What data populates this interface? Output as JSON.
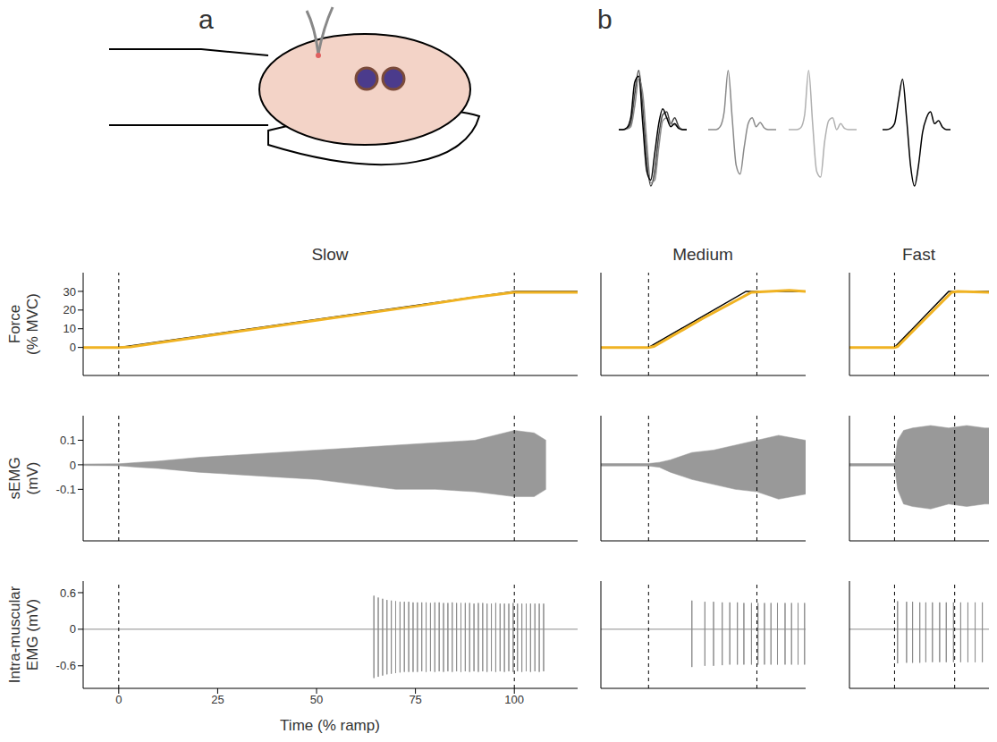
{
  "panel_a": {
    "label": "a"
  },
  "panel_b": {
    "label": "b",
    "ylim": [
      -1.1,
      1.1
    ],
    "units": [
      {
        "traces": [
          {
            "color": "#444444",
            "values": [
              0,
              0,
              0.02,
              0.1,
              0.6,
              1.0,
              0.4,
              -0.5,
              -0.95,
              -0.7,
              -0.1,
              0.25,
              0.3,
              0.1,
              0.2,
              0.05,
              0,
              0
            ]
          },
          {
            "color": "#888888",
            "values": [
              0,
              0,
              0.01,
              0.05,
              0.4,
              0.85,
              0.6,
              -0.2,
              -0.9,
              -0.85,
              -0.3,
              0.15,
              0.2,
              0.1,
              0.08,
              0.03,
              0,
              0
            ]
          },
          {
            "color": "#000000",
            "values": [
              0,
              0,
              0.03,
              0.2,
              0.8,
              0.9,
              0.1,
              -0.7,
              -0.85,
              -0.4,
              0.1,
              0.35,
              0.2,
              0.05,
              0.1,
              0.02,
              0,
              0
            ]
          }
        ]
      },
      {
        "traces": [
          {
            "color": "#8a8a8a",
            "values": [
              0,
              0,
              0,
              0.05,
              0.3,
              1.0,
              0.2,
              -0.6,
              -0.75,
              -0.3,
              0.1,
              0.2,
              0.05,
              0.12,
              0.03,
              0,
              0,
              0
            ]
          }
        ]
      },
      {
        "traces": [
          {
            "color": "#b0b0b0",
            "values": [
              0,
              0,
              0,
              0.03,
              0.25,
              1.0,
              0.1,
              -0.7,
              -0.8,
              -0.2,
              0.15,
              0.2,
              0.0,
              0.1,
              0.02,
              0,
              0,
              0
            ]
          }
        ]
      },
      {
        "traces": [
          {
            "color": "#000000",
            "values": [
              0,
              0,
              0.02,
              0.1,
              0.5,
              0.85,
              0.2,
              -0.6,
              -0.95,
              -0.6,
              -0.05,
              0.2,
              0.3,
              0.1,
              0.15,
              0.04,
              0,
              0
            ]
          }
        ]
      }
    ]
  },
  "chart_data": [
    {
      "type": "line",
      "title": "Slow",
      "ylabel": [
        "Force",
        "(% MVC)"
      ],
      "xlim": [
        -9,
        116
      ],
      "ylim": [
        -15,
        40
      ],
      "yticks": [
        0,
        10,
        20,
        30
      ],
      "tick_labels": "y",
      "ramp_markers": [
        0,
        100
      ],
      "series": [
        {
          "color": "#000000",
          "x": [
            -9,
            0,
            100,
            116
          ],
          "values": [
            0,
            0,
            30,
            30
          ]
        },
        {
          "color": "#f0b323",
          "x": [
            -9,
            0,
            3,
            10,
            25,
            50,
            75,
            90,
            100,
            108,
            116
          ],
          "values": [
            0,
            0,
            0.3,
            2.5,
            7,
            14.5,
            22,
            26.8,
            29.5,
            29.5,
            29.5
          ]
        }
      ]
    },
    {
      "type": "area",
      "ylabel": [
        "sEMG",
        "(mV)"
      ],
      "xlim": [
        -9,
        116
      ],
      "ylim": [
        -0.31,
        0.2
      ],
      "yticks": [
        -0.1,
        0,
        0.1
      ],
      "tick_labels": "y",
      "ramp_markers": [
        0,
        100
      ],
      "color": "#999999",
      "x": [
        -9,
        0,
        5,
        10,
        20,
        30,
        40,
        50,
        60,
        70,
        80,
        90,
        95,
        100,
        105,
        108
      ],
      "upper": [
        0.003,
        0.004,
        0.01,
        0.015,
        0.03,
        0.04,
        0.05,
        0.06,
        0.07,
        0.08,
        0.09,
        0.1,
        0.12,
        0.14,
        0.13,
        0.1
      ],
      "lower": [
        -0.003,
        -0.004,
        -0.01,
        -0.015,
        -0.03,
        -0.04,
        -0.05,
        -0.06,
        -0.08,
        -0.1,
        -0.1,
        -0.11,
        -0.12,
        -0.13,
        -0.13,
        -0.1
      ]
    },
    {
      "type": "spikes",
      "ylabel": [
        "Intra-muscular",
        "EMG (mV)"
      ],
      "xlabel": "Time (% ramp)",
      "xlim": [
        -9,
        116
      ],
      "ylim": [
        -0.97,
        0.79
      ],
      "xticks": [
        0,
        25,
        50,
        75,
        100
      ],
      "yticks": [
        -0.6,
        0,
        0.6
      ],
      "tick_labels": true,
      "ramp_markers": [
        0,
        100
      ],
      "color": "#8c8c8c",
      "baseline": 0,
      "spike_times": [
        64.5,
        65.6,
        66.7,
        67.8,
        68.9,
        70,
        71.1,
        72.2,
        73.3,
        74.4,
        75.5,
        76.6,
        77.7,
        78.8,
        79.9,
        81,
        82.1,
        83.2,
        84.3,
        85.4,
        86.5,
        87.6,
        88.7,
        89.8,
        90.9,
        92,
        93.1,
        94.2,
        95.3,
        96.4,
        97.5,
        98.6,
        99.7,
        100.8,
        101.9,
        103,
        104.1,
        105.2,
        106.3,
        107.4
      ],
      "spike_max": [
        0.55,
        0.52,
        0.5,
        0.48,
        0.47,
        0.46,
        0.45,
        0.45,
        0.45,
        0.44,
        0.44,
        0.44,
        0.44,
        0.43,
        0.44,
        0.44,
        0.43,
        0.43,
        0.44,
        0.43,
        0.43,
        0.43,
        0.43,
        0.42,
        0.43,
        0.43,
        0.42,
        0.42,
        0.43,
        0.42,
        0.42,
        0.42,
        0.43,
        0.42,
        0.42,
        0.42,
        0.42,
        0.42,
        0.42,
        0.42
      ],
      "spike_min": [
        -0.8,
        -0.78,
        -0.76,
        -0.74,
        -0.73,
        -0.72,
        -0.71,
        -0.7,
        -0.7,
        -0.7,
        -0.7,
        -0.69,
        -0.7,
        -0.69,
        -0.7,
        -0.69,
        -0.7,
        -0.69,
        -0.7,
        -0.69,
        -0.7,
        -0.69,
        -0.7,
        -0.69,
        -0.7,
        -0.69,
        -0.7,
        -0.69,
        -0.7,
        -0.69,
        -0.7,
        -0.69,
        -0.7,
        -0.69,
        -0.7,
        -0.69,
        -0.7,
        -0.69,
        -0.7,
        -0.69
      ]
    },
    {
      "type": "line",
      "title": "Medium",
      "xlim": [
        -44,
        145
      ],
      "ylim": [
        -15,
        40
      ],
      "tick_labels": false,
      "ramp_markers": [
        0,
        100
      ],
      "series": [
        {
          "color": "#000000",
          "x": [
            -44,
            0,
            90,
            145
          ],
          "values": [
            0,
            0,
            30,
            30
          ]
        },
        {
          "color": "#f0b323",
          "x": [
            -44,
            0,
            5,
            50,
            95,
            130,
            145
          ],
          "values": [
            0,
            0,
            0.5,
            15.5,
            29.5,
            30.5,
            30
          ]
        }
      ]
    },
    {
      "type": "area",
      "xlim": [
        -44,
        145
      ],
      "ylim": [
        -0.31,
        0.2
      ],
      "tick_labels": false,
      "ramp_markers": [
        0,
        100
      ],
      "color": "#999999",
      "x": [
        -44,
        0,
        10,
        20,
        40,
        60,
        80,
        100,
        120,
        145
      ],
      "upper": [
        0.005,
        0.005,
        0.01,
        0.02,
        0.05,
        0.06,
        0.08,
        0.1,
        0.12,
        0.1
      ],
      "lower": [
        -0.005,
        -0.005,
        -0.01,
        -0.03,
        -0.06,
        -0.08,
        -0.1,
        -0.11,
        -0.14,
        -0.12
      ]
    },
    {
      "type": "spikes",
      "xlim": [
        -44,
        145
      ],
      "ylim": [
        -0.97,
        0.79
      ],
      "tick_labels": false,
      "ramp_markers": [
        0,
        100
      ],
      "color": "#8c8c8c",
      "baseline": 0,
      "spike_times": [
        40,
        52,
        60,
        68,
        75,
        82,
        88,
        95,
        101,
        107,
        113,
        119,
        126,
        132,
        138,
        144
      ],
      "spike_max": [
        0.47,
        0.45,
        0.45,
        0.44,
        0.44,
        0.44,
        0.43,
        0.43,
        0.43,
        0.43,
        0.43,
        0.43,
        0.43,
        0.43,
        0.43,
        0.43
      ],
      "spike_min": [
        -0.62,
        -0.6,
        -0.6,
        -0.59,
        -0.58,
        -0.58,
        -0.58,
        -0.58,
        -0.58,
        -0.58,
        -0.58,
        -0.58,
        -0.58,
        -0.58,
        -0.58,
        -0.58
      ]
    },
    {
      "type": "line",
      "title": "Fast",
      "xlim": [
        -75,
        157
      ],
      "ylim": [
        -15,
        40
      ],
      "tick_labels": false,
      "ramp_markers": [
        0,
        100
      ],
      "series": [
        {
          "color": "#000000",
          "x": [
            -75,
            0,
            90,
            157
          ],
          "values": [
            0,
            0,
            30,
            30
          ]
        },
        {
          "color": "#f0b323",
          "x": [
            -75,
            0,
            5,
            50,
            95,
            105,
            157
          ],
          "values": [
            0,
            0,
            0.5,
            15,
            29.5,
            30,
            29.5
          ]
        }
      ]
    },
    {
      "type": "area",
      "xlim": [
        -75,
        157
      ],
      "ylim": [
        -0.31,
        0.2
      ],
      "tick_labels": false,
      "ramp_markers": [
        0,
        100
      ],
      "color": "#999999",
      "x": [
        -75,
        0,
        5,
        15,
        30,
        60,
        90,
        120,
        150,
        157
      ],
      "upper": [
        0.005,
        0.005,
        0.1,
        0.14,
        0.15,
        0.16,
        0.15,
        0.16,
        0.15,
        0.15
      ],
      "lower": [
        -0.005,
        -0.005,
        -0.1,
        -0.16,
        -0.17,
        -0.18,
        -0.16,
        -0.17,
        -0.16,
        -0.16
      ]
    },
    {
      "type": "spikes",
      "xlim": [
        -75,
        157
      ],
      "ylim": [
        -0.97,
        0.79
      ],
      "tick_labels": false,
      "ramp_markers": [
        0,
        100
      ],
      "color": "#8c8c8c",
      "baseline": 0,
      "spike_times": [
        5,
        20,
        30,
        42,
        52,
        63,
        75,
        86,
        98,
        110,
        122,
        134,
        146
      ],
      "spike_max": [
        0.46,
        0.45,
        0.45,
        0.44,
        0.44,
        0.44,
        0.44,
        0.44,
        0.44,
        0.44,
        0.44,
        0.44,
        0.44
      ],
      "spike_min": [
        -0.56,
        -0.55,
        -0.55,
        -0.55,
        -0.54,
        -0.54,
        -0.54,
        -0.54,
        -0.54,
        -0.54,
        -0.54,
        -0.54,
        -0.54
      ]
    }
  ]
}
